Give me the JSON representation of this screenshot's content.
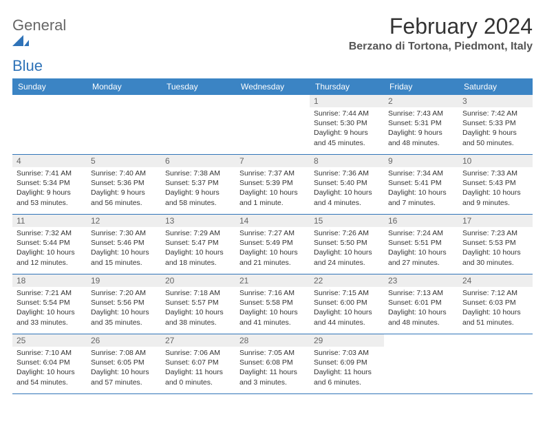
{
  "logo": {
    "word1": "General",
    "word2": "Blue"
  },
  "title": "February 2024",
  "location": "Berzano di Tortona, Piedmont, Italy",
  "colors": {
    "header_bg": "#3b84c4",
    "header_text": "#ffffff",
    "divider": "#2f73b8",
    "daynum_bg": "#eeeeee",
    "daynum_text": "#666666",
    "body_text": "#333333",
    "logo_grey": "#666666",
    "logo_blue": "#2f73b8",
    "page_bg": "#ffffff"
  },
  "day_names": [
    "Sunday",
    "Monday",
    "Tuesday",
    "Wednesday",
    "Thursday",
    "Friday",
    "Saturday"
  ],
  "weeks": [
    [
      {
        "day": null
      },
      {
        "day": null
      },
      {
        "day": null
      },
      {
        "day": null
      },
      {
        "day": 1,
        "sunrise": "7:44 AM",
        "sunset": "5:30 PM",
        "daylight": "9 hours and 45 minutes."
      },
      {
        "day": 2,
        "sunrise": "7:43 AM",
        "sunset": "5:31 PM",
        "daylight": "9 hours and 48 minutes."
      },
      {
        "day": 3,
        "sunrise": "7:42 AM",
        "sunset": "5:33 PM",
        "daylight": "9 hours and 50 minutes."
      }
    ],
    [
      {
        "day": 4,
        "sunrise": "7:41 AM",
        "sunset": "5:34 PM",
        "daylight": "9 hours and 53 minutes."
      },
      {
        "day": 5,
        "sunrise": "7:40 AM",
        "sunset": "5:36 PM",
        "daylight": "9 hours and 56 minutes."
      },
      {
        "day": 6,
        "sunrise": "7:38 AM",
        "sunset": "5:37 PM",
        "daylight": "9 hours and 58 minutes."
      },
      {
        "day": 7,
        "sunrise": "7:37 AM",
        "sunset": "5:39 PM",
        "daylight": "10 hours and 1 minute."
      },
      {
        "day": 8,
        "sunrise": "7:36 AM",
        "sunset": "5:40 PM",
        "daylight": "10 hours and 4 minutes."
      },
      {
        "day": 9,
        "sunrise": "7:34 AM",
        "sunset": "5:41 PM",
        "daylight": "10 hours and 7 minutes."
      },
      {
        "day": 10,
        "sunrise": "7:33 AM",
        "sunset": "5:43 PM",
        "daylight": "10 hours and 9 minutes."
      }
    ],
    [
      {
        "day": 11,
        "sunrise": "7:32 AM",
        "sunset": "5:44 PM",
        "daylight": "10 hours and 12 minutes."
      },
      {
        "day": 12,
        "sunrise": "7:30 AM",
        "sunset": "5:46 PM",
        "daylight": "10 hours and 15 minutes."
      },
      {
        "day": 13,
        "sunrise": "7:29 AM",
        "sunset": "5:47 PM",
        "daylight": "10 hours and 18 minutes."
      },
      {
        "day": 14,
        "sunrise": "7:27 AM",
        "sunset": "5:49 PM",
        "daylight": "10 hours and 21 minutes."
      },
      {
        "day": 15,
        "sunrise": "7:26 AM",
        "sunset": "5:50 PM",
        "daylight": "10 hours and 24 minutes."
      },
      {
        "day": 16,
        "sunrise": "7:24 AM",
        "sunset": "5:51 PM",
        "daylight": "10 hours and 27 minutes."
      },
      {
        "day": 17,
        "sunrise": "7:23 AM",
        "sunset": "5:53 PM",
        "daylight": "10 hours and 30 minutes."
      }
    ],
    [
      {
        "day": 18,
        "sunrise": "7:21 AM",
        "sunset": "5:54 PM",
        "daylight": "10 hours and 33 minutes."
      },
      {
        "day": 19,
        "sunrise": "7:20 AM",
        "sunset": "5:56 PM",
        "daylight": "10 hours and 35 minutes."
      },
      {
        "day": 20,
        "sunrise": "7:18 AM",
        "sunset": "5:57 PM",
        "daylight": "10 hours and 38 minutes."
      },
      {
        "day": 21,
        "sunrise": "7:16 AM",
        "sunset": "5:58 PM",
        "daylight": "10 hours and 41 minutes."
      },
      {
        "day": 22,
        "sunrise": "7:15 AM",
        "sunset": "6:00 PM",
        "daylight": "10 hours and 44 minutes."
      },
      {
        "day": 23,
        "sunrise": "7:13 AM",
        "sunset": "6:01 PM",
        "daylight": "10 hours and 48 minutes."
      },
      {
        "day": 24,
        "sunrise": "7:12 AM",
        "sunset": "6:03 PM",
        "daylight": "10 hours and 51 minutes."
      }
    ],
    [
      {
        "day": 25,
        "sunrise": "7:10 AM",
        "sunset": "6:04 PM",
        "daylight": "10 hours and 54 minutes."
      },
      {
        "day": 26,
        "sunrise": "7:08 AM",
        "sunset": "6:05 PM",
        "daylight": "10 hours and 57 minutes."
      },
      {
        "day": 27,
        "sunrise": "7:06 AM",
        "sunset": "6:07 PM",
        "daylight": "11 hours and 0 minutes."
      },
      {
        "day": 28,
        "sunrise": "7:05 AM",
        "sunset": "6:08 PM",
        "daylight": "11 hours and 3 minutes."
      },
      {
        "day": 29,
        "sunrise": "7:03 AM",
        "sunset": "6:09 PM",
        "daylight": "11 hours and 6 minutes."
      },
      {
        "day": null
      },
      {
        "day": null
      }
    ]
  ],
  "labels": {
    "sunrise": "Sunrise:",
    "sunset": "Sunset:",
    "daylight": "Daylight:"
  }
}
